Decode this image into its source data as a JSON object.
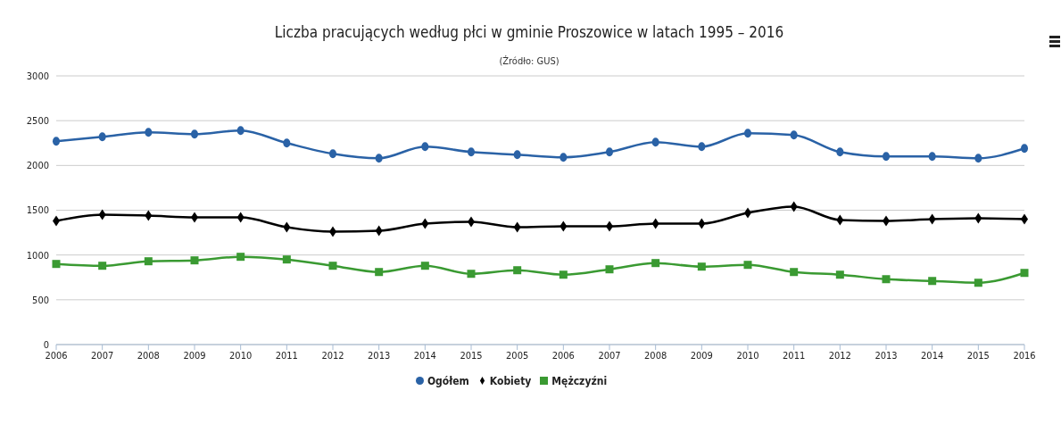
{
  "chart_data": {
    "type": "line",
    "title": "Liczba pracujących według płci w gminie Proszowice w latach 1995 – 2016",
    "subtitle": "(Źródło: GUS)",
    "categories": [
      "2006",
      "2007",
      "2008",
      "2009",
      "2010",
      "2011",
      "2012",
      "2013",
      "2014",
      "2015",
      "2005",
      "2006",
      "2007",
      "2008",
      "2009",
      "2010",
      "2011",
      "2012",
      "2013",
      "2014",
      "2015",
      "2016"
    ],
    "series": [
      {
        "name": "Ogółem",
        "color": "#2a62a6",
        "marker": "circle",
        "values": [
          2270,
          2320,
          2370,
          2350,
          2390,
          2250,
          2130,
          2080,
          2210,
          2150,
          2120,
          2090,
          2150,
          2260,
          2210,
          2360,
          2340,
          2150,
          2100,
          2100,
          2080,
          2190
        ]
      },
      {
        "name": "Kobiety",
        "color": "#000000",
        "marker": "diamond",
        "values": [
          1380,
          1450,
          1440,
          1420,
          1420,
          1310,
          1260,
          1270,
          1350,
          1370,
          1310,
          1320,
          1320,
          1350,
          1350,
          1470,
          1540,
          1390,
          1380,
          1400,
          1410,
          1400
        ]
      },
      {
        "name": "Mężczyźni",
        "color": "#3a9a32",
        "marker": "square",
        "values": [
          900,
          880,
          930,
          940,
          980,
          950,
          880,
          810,
          880,
          790,
          830,
          780,
          840,
          910,
          870,
          890,
          810,
          780,
          730,
          710,
          690,
          800
        ]
      }
    ],
    "ylim": [
      0,
      3000
    ],
    "yticks": [
      0,
      500,
      1000,
      1500,
      2000,
      2500,
      3000
    ],
    "grid": "y",
    "legend": "bottom",
    "line_style": "solid"
  }
}
